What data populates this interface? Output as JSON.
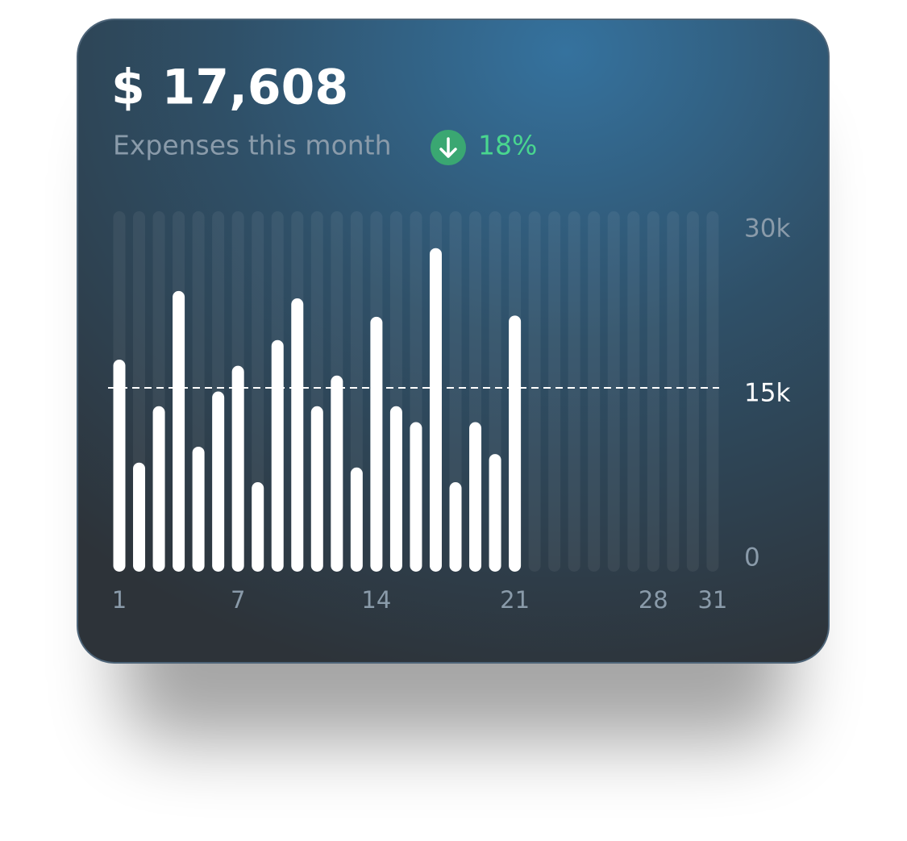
{
  "chart_data": {
    "type": "bar",
    "title": "$ 17,608",
    "subtitle": "Expenses this month",
    "annotation": "18%",
    "categories": [
      "1",
      null,
      null,
      null,
      null,
      null,
      "7",
      null,
      null,
      null,
      null,
      null,
      null,
      "14",
      null,
      null,
      null,
      null,
      null,
      null,
      "21",
      null,
      null,
      null,
      null,
      null,
      null,
      "28",
      null,
      null,
      "31"
    ],
    "values": [
      17300,
      8900,
      13500,
      22900,
      10200,
      14700,
      16800,
      7300,
      18900,
      22300,
      13500,
      16000,
      8500,
      20800,
      13500,
      12200,
      26400,
      7300,
      12200,
      9600,
      20900,
      null,
      null,
      null,
      null,
      null,
      null,
      null,
      null,
      null,
      null
    ],
    "color": "#ffffff",
    "ylim": [
      0,
      30000
    ],
    "yticks": [
      0,
      {
        "value": 15000,
        "label": "15k"
      },
      {
        "value": 30000,
        "label": "30k"
      }
    ],
    "grid": "dashed"
  }
}
